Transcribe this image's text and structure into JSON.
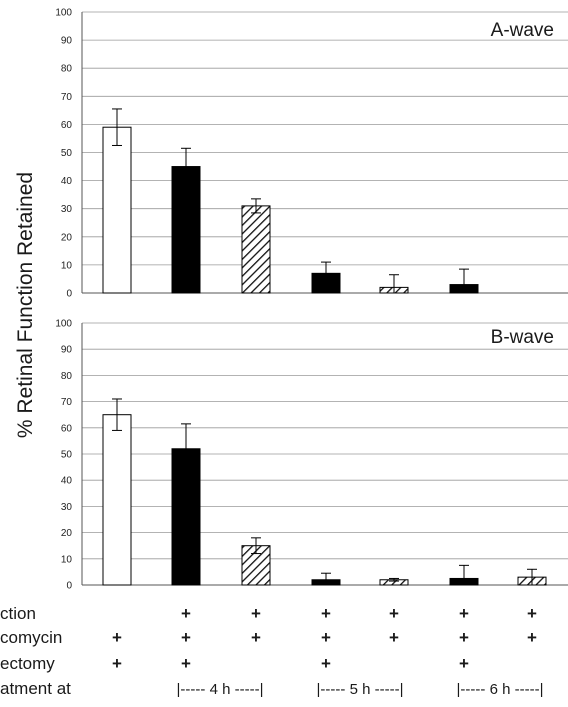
{
  "chart_data": [
    {
      "type": "bar",
      "title": "A-wave",
      "ylabel": "% Retinal Function Retained",
      "ylim": [
        0,
        100
      ],
      "yticks": [
        "0",
        "10",
        "20",
        "30",
        "40",
        "50",
        "60",
        "70",
        "80",
        "90",
        "100"
      ],
      "grid": true,
      "bar_styles": [
        "white",
        "black",
        "hatched",
        "black",
        "hatched",
        "black",
        "hatched"
      ],
      "values": [
        59,
        45,
        31,
        7,
        2,
        3,
        0
      ],
      "errors": [
        6.5,
        6.5,
        2.5,
        4,
        4.5,
        5.5,
        0
      ]
    },
    {
      "type": "bar",
      "title": "B-wave",
      "ylim": [
        0,
        100
      ],
      "yticks": [
        "0",
        "10",
        "20",
        "30",
        "40",
        "50",
        "60",
        "70",
        "80",
        "90",
        "100"
      ],
      "grid": true,
      "bar_styles": [
        "white",
        "black",
        "hatched",
        "black",
        "hatched",
        "black",
        "hatched"
      ],
      "values": [
        65,
        52,
        15,
        2,
        2,
        2.5,
        3
      ],
      "errors": [
        6,
        9.5,
        3,
        2.5,
        0.5,
        5,
        3
      ]
    }
  ],
  "table": {
    "row_labels": [
      "ction",
      "comycin",
      "ectomy",
      "atment at"
    ],
    "rows": [
      [
        "",
        "+",
        "+",
        "+",
        "+",
        "+",
        "+"
      ],
      [
        "+",
        "+",
        "+",
        "+",
        "+",
        "+",
        "+"
      ],
      [
        "+",
        "+",
        "",
        "+",
        "",
        "+",
        ""
      ]
    ],
    "groups": [
      "|----- 4 h -----|",
      "|----- 5 h -----|",
      "|----- 6 h -----|"
    ]
  }
}
